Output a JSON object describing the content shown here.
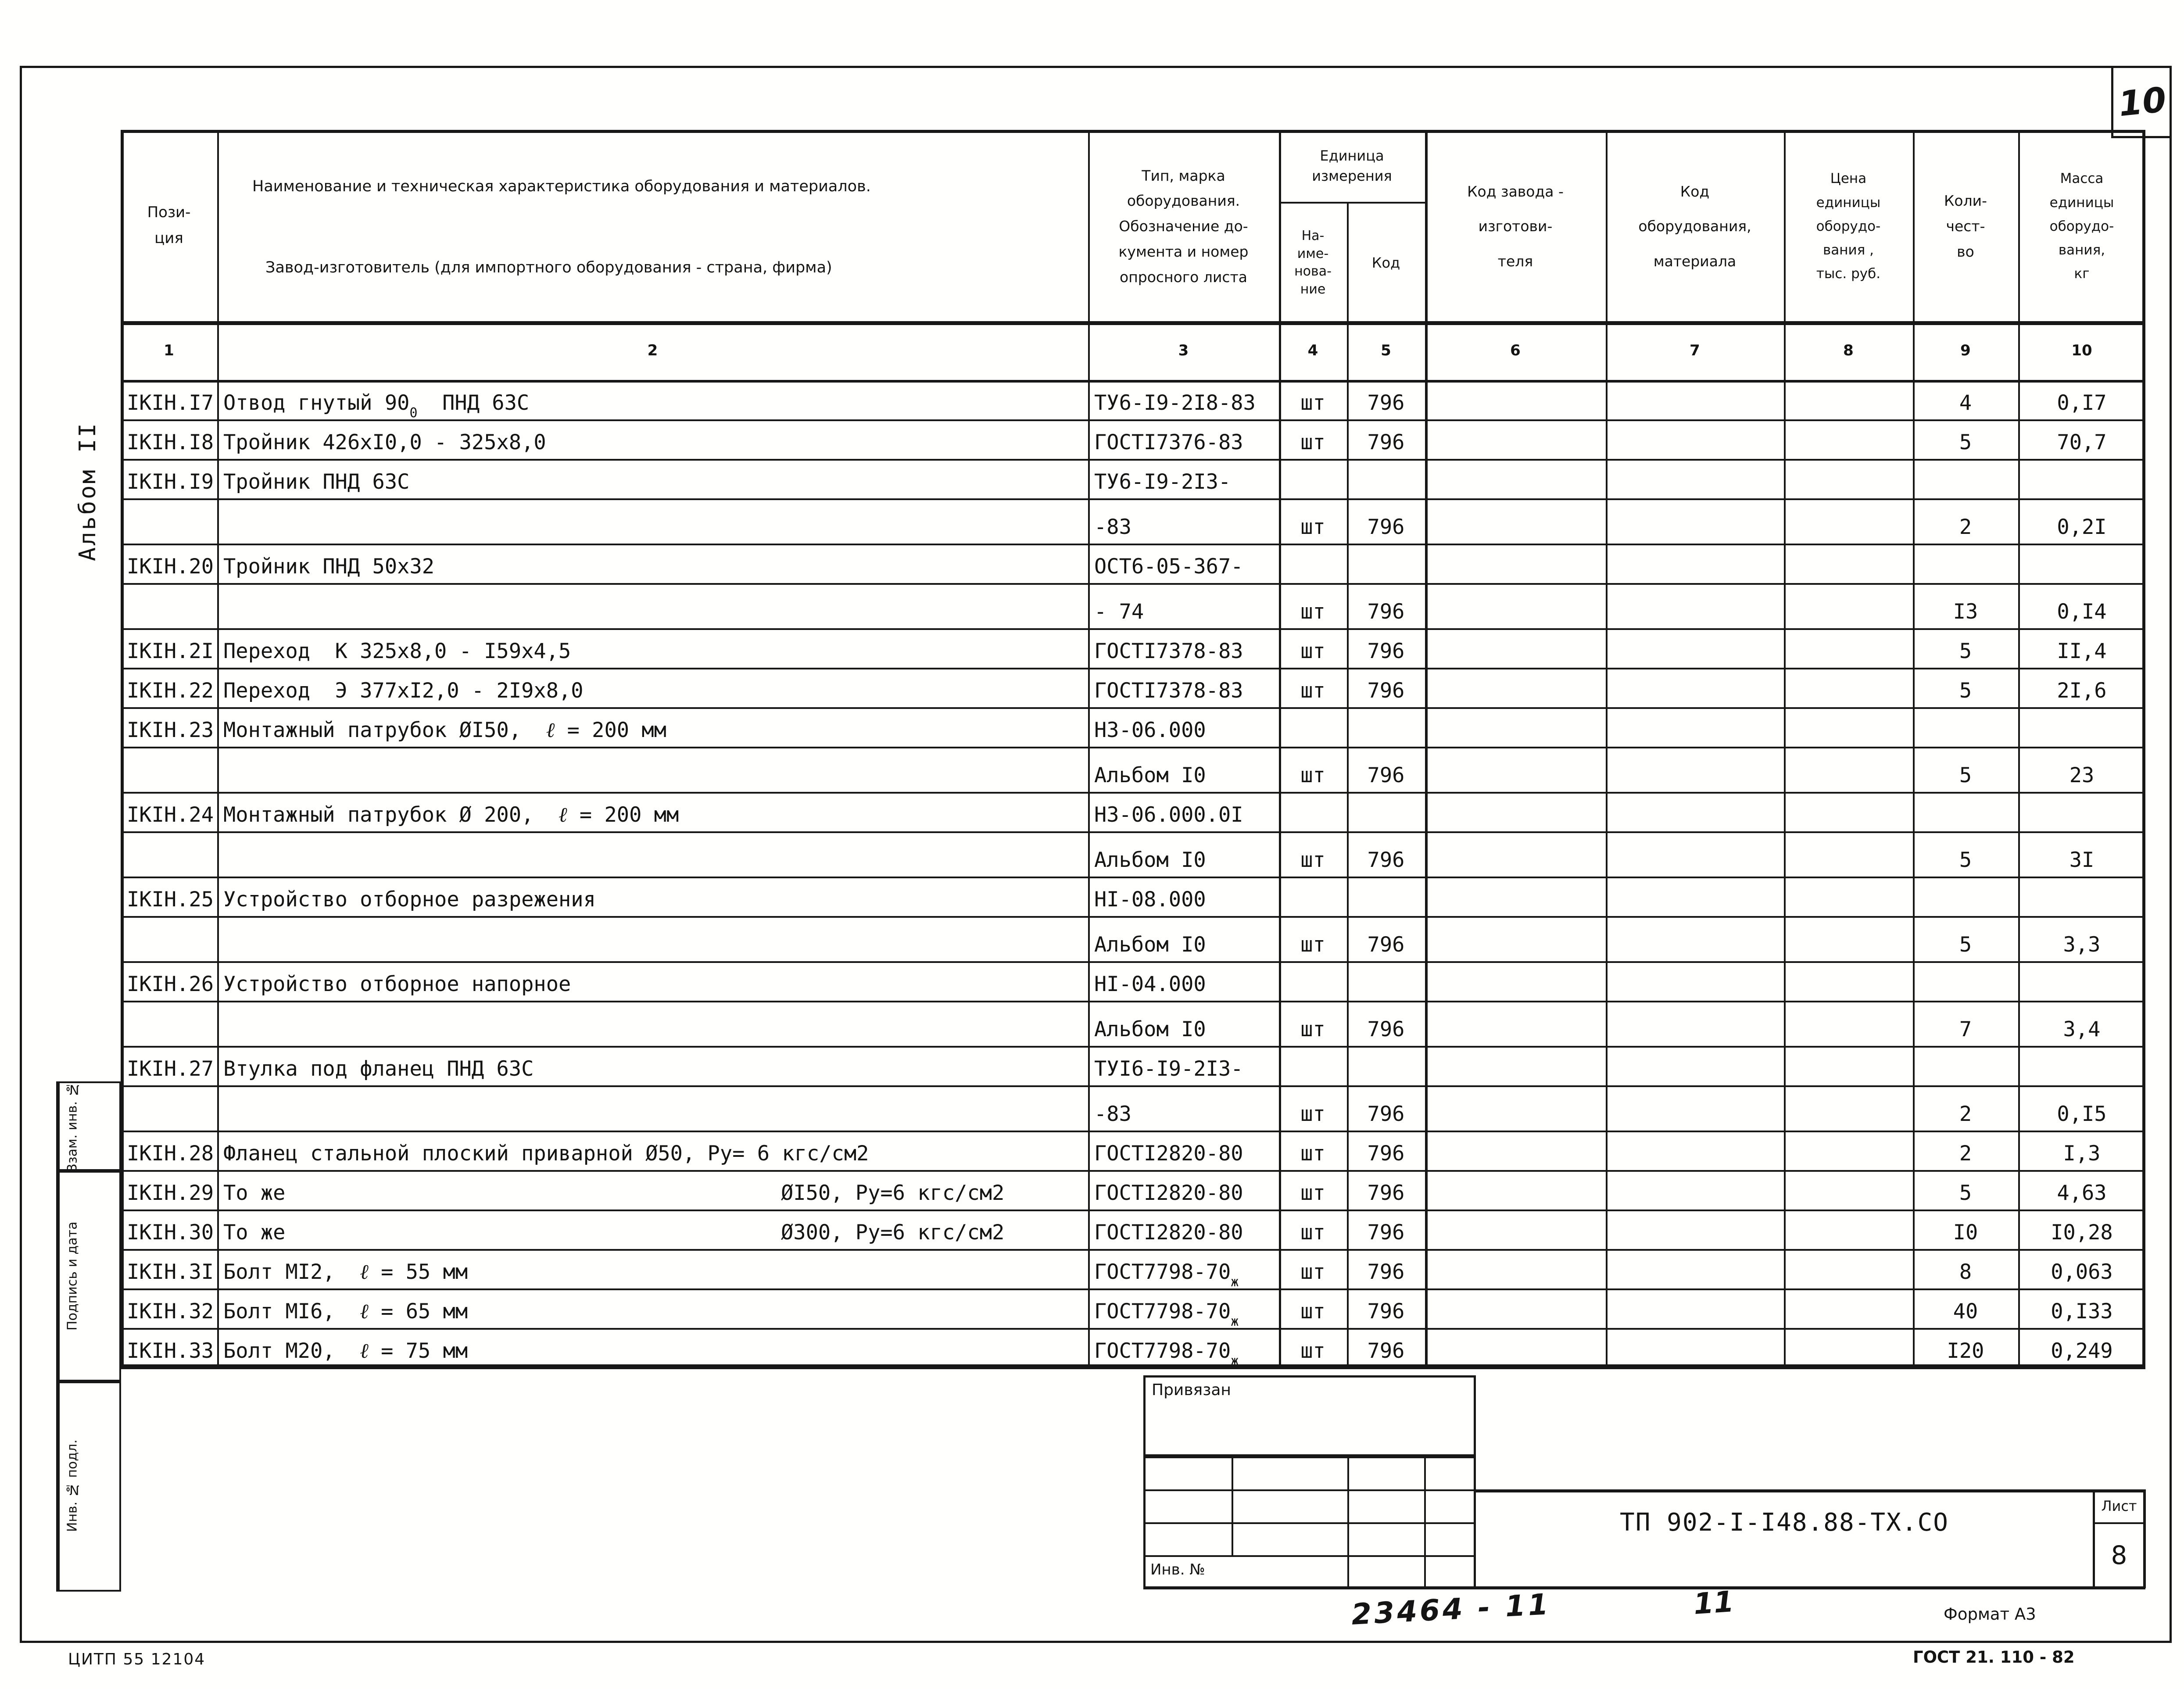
{
  "page": {
    "page_number_handwritten": "10",
    "album_label": "Альбом II",
    "margin_stamps": [
      {
        "label": "Взам. инв. №"
      },
      {
        "label": "Подпись и дата"
      },
      {
        "label": "Инв. № подл."
      }
    ],
    "footer": {
      "citp_code": "ЦИТП  55 12104",
      "format_label": "Формат А3",
      "gost_label": "ГОСТ 21. 110 - 82",
      "handwritten_code": "23464 - 11",
      "handwritten_extra": "11"
    }
  },
  "title_block": {
    "pin_label": "Привязан",
    "inv_label": "Инв. №",
    "doc_number": "ТП 902-I-I48.88-ТХ.СО",
    "sheet_label": "Лист",
    "sheet_number": "8"
  },
  "table": {
    "headers": {
      "col1": "Пози-\nция",
      "col2_line1": "Наименование и техническая характеристика  оборудования и материалов.",
      "col2_line2": "Завод-изготовитель  (для импортного оборудования -  страна, фирма)",
      "col3": "Тип,   марка\nоборудования.\nОбозначение до-\nкумента и номер\nопросного листа",
      "unit_group": "Единица\nизмерения",
      "col4": "На-\nиме-\nнова-\nние",
      "col5": "Код",
      "col6": "Код  завода -\nизготови-\nтеля",
      "col7": "Код\nоборудования,\nматериала",
      "col8": "Цена\nединицы\nоборудо-\nвания ,\nтыс. руб.",
      "col9": "Коли-\nчест-\nво",
      "col10": "Масса\nединицы\nоборудо-\nвания,\nкг"
    },
    "column_numbers": [
      "1",
      "2",
      "3",
      "4",
      "5",
      "6",
      "7",
      "8",
      "9",
      "10"
    ],
    "rows": [
      {
        "pos": "IКIН.I7",
        "name": "Отвод гнутый 90<sup>0</sup>  ПНД 63С",
        "doc": "ТУ6-I9-2I8-83",
        "unit": "шт",
        "code": "796",
        "qty": "4",
        "mass": "0,I7"
      },
      {
        "pos": "IКIН.I8",
        "name": "Тройник 426хI0,0 - 325х8,0",
        "doc": "ГОСТI7376-83",
        "unit": "шт",
        "code": "796",
        "qty": "5",
        "mass": "70,7"
      },
      {
        "pos": "IКIН.I9",
        "name": "Тройник ПНД 63С",
        "doc": "ТУ6-I9-2I3-"
      },
      {
        "cont": true,
        "doc": "-83",
        "unit": "шт",
        "code": "796",
        "qty": "2",
        "mass": "0,2I"
      },
      {
        "pos": "IКIН.20",
        "name": "Тройник ПНД 50х32",
        "doc": "ОСТ6-05-367-"
      },
      {
        "cont": true,
        "doc": "- 74",
        "unit": "шт",
        "code": "796",
        "qty": "I3",
        "mass": "0,I4"
      },
      {
        "pos": "IКIН.2I",
        "name": "Переход  К 325х8,0 - I59х4,5",
        "doc": "ГОСТI7378-83",
        "unit": "шт",
        "code": "796",
        "qty": "5",
        "mass": "II,4"
      },
      {
        "pos": "IКIН.22",
        "name": "Переход  Э 377хI2,0 - 2I9х8,0",
        "doc": "ГОСТI7378-83",
        "unit": "шт",
        "code": "796",
        "qty": "5",
        "mass": "2I,6"
      },
      {
        "pos": "IКIН.23",
        "name": "Монтажный патрубок ØI50,  <i>ℓ</i> = 200 мм",
        "doc": "Н3-06.000"
      },
      {
        "cont": true,
        "doc": "Альбом I0",
        "unit": "шт",
        "code": "796",
        "qty": "5",
        "mass": "23"
      },
      {
        "pos": "IКIН.24",
        "name": "Монтажный патрубок Ø 200,  <i>ℓ</i> = 200 мм",
        "doc": "Н3-06.000.0I"
      },
      {
        "cont": true,
        "doc": "Альбом I0",
        "unit": "шт",
        "code": "796",
        "qty": "5",
        "mass": "3I"
      },
      {
        "pos": "IКIН.25",
        "name": "Устройство отборное разрежения",
        "doc": "НI-08.000"
      },
      {
        "cont": true,
        "doc": "Альбом I0",
        "unit": "шт",
        "code": "796",
        "qty": "5",
        "mass": "3,3"
      },
      {
        "pos": "IКIН.26",
        "name": "Устройство отборное напорное",
        "doc": "НI-04.000"
      },
      {
        "cont": true,
        "doc": "Альбом I0",
        "unit": "шт",
        "code": "796",
        "qty": "7",
        "mass": "3,4"
      },
      {
        "pos": "IКIН.27",
        "name": "Втулка под фланец ПНД 63С",
        "doc": "ТУI6-I9-2I3-"
      },
      {
        "cont": true,
        "doc": "-83",
        "unit": "шт",
        "code": "796",
        "qty": "2",
        "mass": "0,I5"
      },
      {
        "pos": "IКIН.28",
        "name": "Фланец стальной плоский приварной Ø50, Ру= 6 кгс/см2",
        "doc": "ГОСТI2820-80",
        "unit": "шт",
        "code": "796",
        "qty": "2",
        "mass": "I,3"
      },
      {
        "pos": "IКIН.29",
        "name": "То же",
        "name2": "ØI50, Ру=6 кгс/см2",
        "doc": "ГОСТI2820-80",
        "unit": "шт",
        "code": "796",
        "qty": "5",
        "mass": "4,63"
      },
      {
        "pos": "IКIН.30",
        "name": "То же",
        "name2": "Ø300, Ру=6 кгс/см2",
        "doc": "ГОСТI2820-80",
        "unit": "шт",
        "code": "796",
        "qty": "I0",
        "mass": "I0,28"
      },
      {
        "pos": "IКIН.3I",
        "name": "Болт МI2,  <i>ℓ</i> = 55 мм",
        "doc": "ГОСТ7798-70<sup>ж</sup>",
        "unit": "шт",
        "code": "796",
        "qty": "8",
        "mass": "0,063"
      },
      {
        "pos": "IКIН.32",
        "name": "Болт МI6,  <i>ℓ</i> = 65 мм",
        "doc": "ГОСТ7798-70<sup>ж</sup>",
        "unit": "шт",
        "code": "796",
        "qty": "40",
        "mass": "0,I33"
      },
      {
        "pos": "IКIН.33",
        "name": "Болт М20,  <i>ℓ</i> = 75 мм",
        "doc": "ГОСТ7798-70<sup>ж</sup>",
        "unit": "шт",
        "code": "796",
        "qty": "I20",
        "mass": "0,249"
      }
    ]
  }
}
